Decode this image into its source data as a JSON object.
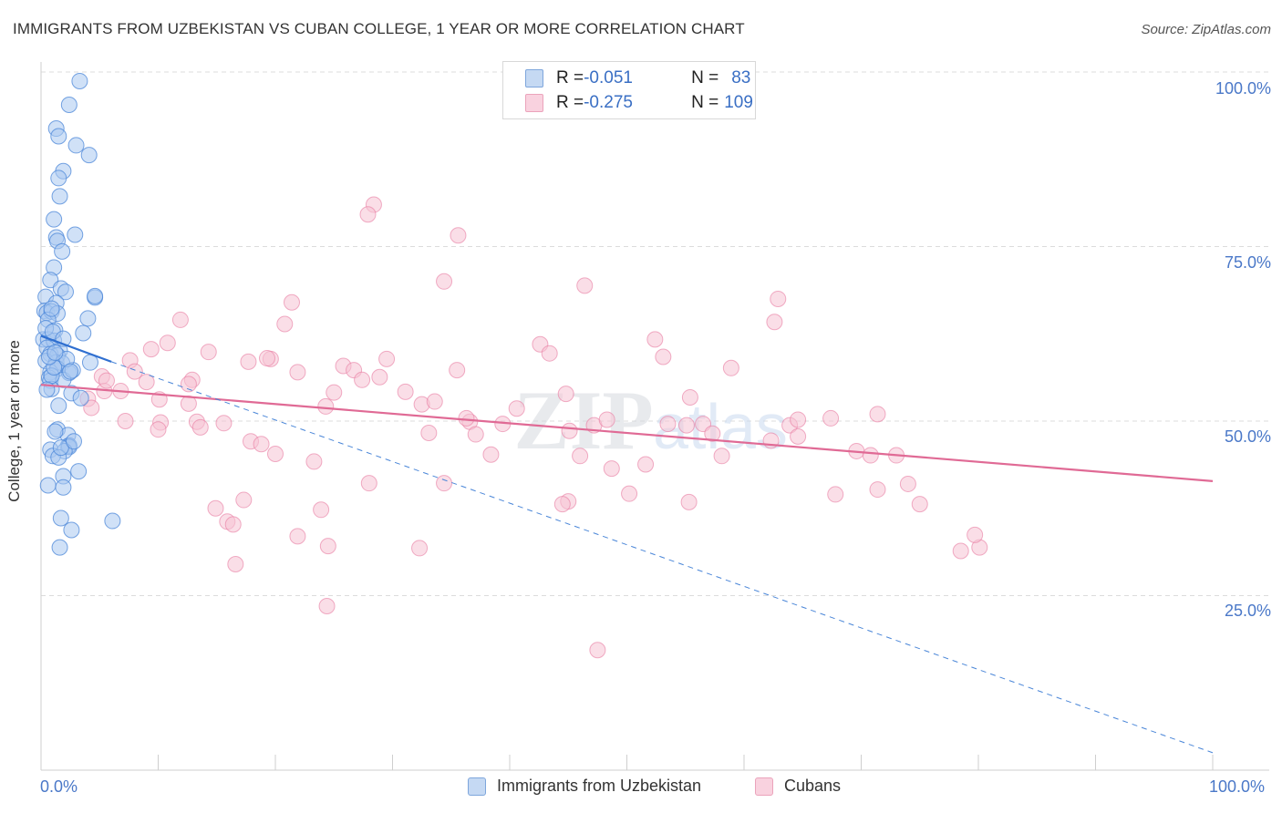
{
  "title": "IMMIGRANTS FROM UZBEKISTAN VS CUBAN COLLEGE, 1 YEAR OR MORE CORRELATION CHART",
  "source": "Source: ZipAtlas.com",
  "watermark": "ZIPatlas",
  "legend_top": {
    "rows": [
      {
        "r_label": "R = ",
        "r_value": "-0.051",
        "n_label": "N = ",
        "n_value": "83"
      },
      {
        "r_label": "R = ",
        "r_value": "-0.275",
        "n_label": "N = ",
        "n_value": "109"
      }
    ]
  },
  "colors": {
    "blue": "#4a86d8",
    "blue_fill": "#aac8f0",
    "pink": "#e87aa0",
    "pink_fill": "#f6c3d4",
    "axis_text": "#4a78c8"
  },
  "chart_data": {
    "type": "scatter",
    "title": "IMMIGRANTS FROM UZBEKISTAN VS CUBAN COLLEGE, 1 YEAR OR MORE CORRELATION CHART",
    "xlabel": "",
    "ylabel": "College, 1 year or more",
    "xlim": [
      0,
      100
    ],
    "ylim": [
      0,
      100
    ],
    "x_tick_labels": [
      "0.0%",
      "100.0%"
    ],
    "y_tick_labels": [
      "100.0%",
      "75.0%",
      "50.0%",
      "25.0%"
    ],
    "y_tick_values": [
      100,
      75,
      50,
      25
    ],
    "legend": [
      "Immigrants from Uzbekistan",
      "Cubans"
    ],
    "series": [
      {
        "name": "Immigrants from Uzbekistan",
        "r": -0.051,
        "n": 83,
        "trend_solid": {
          "x": [
            0,
            6
          ],
          "y": [
            62.2,
            58.5
          ]
        },
        "trend_dashed": {
          "x": [
            6,
            100
          ],
          "y": [
            58.5,
            2.5
          ]
        },
        "points": [
          [
            3.3,
            98.7
          ],
          [
            2.4,
            95.3
          ],
          [
            1.3,
            91.9
          ],
          [
            1.5,
            90.8
          ],
          [
            3.0,
            89.5
          ],
          [
            4.1,
            88.1
          ],
          [
            1.9,
            85.8
          ],
          [
            1.5,
            84.8
          ],
          [
            1.6,
            82.2
          ],
          [
            1.1,
            78.9
          ],
          [
            2.9,
            76.7
          ],
          [
            1.3,
            76.3
          ],
          [
            1.4,
            75.8
          ],
          [
            1.8,
            74.3
          ],
          [
            1.1,
            72.0
          ],
          [
            0.8,
            70.2
          ],
          [
            1.7,
            69.0
          ],
          [
            2.1,
            68.5
          ],
          [
            0.4,
            67.8
          ],
          [
            4.6,
            67.7
          ],
          [
            4.6,
            67.9
          ],
          [
            1.3,
            66.9
          ],
          [
            0.3,
            65.8
          ],
          [
            0.5,
            65.5
          ],
          [
            0.9,
            65.7
          ],
          [
            1.4,
            65.4
          ],
          [
            4.0,
            64.7
          ],
          [
            0.6,
            64.5
          ],
          [
            1.2,
            63.0
          ],
          [
            3.6,
            62.6
          ],
          [
            0.2,
            61.7
          ],
          [
            0.6,
            61.7
          ],
          [
            1.1,
            61.5
          ],
          [
            0.5,
            60.5
          ],
          [
            1.6,
            60.1
          ],
          [
            0.8,
            59.6
          ],
          [
            1.4,
            59.4
          ],
          [
            0.4,
            58.6
          ],
          [
            1.3,
            58.4
          ],
          [
            1.8,
            58.3
          ],
          [
            4.2,
            58.4
          ],
          [
            0.8,
            57.0
          ],
          [
            1.4,
            57.5
          ],
          [
            2.4,
            56.9
          ],
          [
            0.7,
            56.2
          ],
          [
            0.8,
            55.8
          ],
          [
            1.9,
            55.9
          ],
          [
            0.9,
            54.6
          ],
          [
            2.6,
            54.0
          ],
          [
            1.5,
            52.2
          ],
          [
            3.4,
            53.3
          ],
          [
            1.4,
            48.8
          ],
          [
            2.3,
            48.0
          ],
          [
            2.3,
            46.4
          ],
          [
            2.4,
            46.5
          ],
          [
            2.4,
            46.3
          ],
          [
            0.8,
            45.9
          ],
          [
            2.0,
            45.7
          ],
          [
            1.0,
            45.0
          ],
          [
            1.5,
            44.8
          ],
          [
            3.2,
            42.8
          ],
          [
            1.9,
            42.1
          ],
          [
            0.6,
            40.8
          ],
          [
            1.9,
            40.5
          ],
          [
            1.7,
            36.1
          ],
          [
            6.1,
            35.7
          ],
          [
            2.6,
            34.4
          ],
          [
            1.6,
            31.9
          ],
          [
            0.9,
            56.5
          ],
          [
            1.1,
            57.7
          ],
          [
            2.7,
            57.3
          ],
          [
            0.7,
            59.2
          ],
          [
            0.4,
            63.3
          ],
          [
            1.0,
            62.8
          ],
          [
            1.9,
            61.8
          ],
          [
            2.2,
            58.9
          ],
          [
            0.5,
            54.5
          ],
          [
            1.7,
            46.2
          ],
          [
            1.2,
            48.5
          ],
          [
            2.8,
            47.1
          ],
          [
            1.2,
            59.8
          ],
          [
            0.9,
            66.1
          ],
          [
            2.5,
            57.1
          ]
        ]
      },
      {
        "name": "Cubans",
        "r": -0.275,
        "n": 109,
        "trend": {
          "x": [
            0,
            100
          ],
          "y": [
            55.2,
            41.4
          ]
        },
        "points": [
          [
            28.4,
            81.0
          ],
          [
            27.9,
            79.6
          ],
          [
            35.6,
            76.6
          ],
          [
            34.4,
            70.0
          ],
          [
            46.4,
            69.4
          ],
          [
            62.9,
            67.5
          ],
          [
            21.4,
            67.0
          ],
          [
            62.6,
            64.2
          ],
          [
            20.8,
            63.9
          ],
          [
            11.9,
            64.5
          ],
          [
            52.4,
            61.7
          ],
          [
            10.8,
            61.2
          ],
          [
            42.6,
            61.0
          ],
          [
            9.4,
            60.3
          ],
          [
            14.3,
            59.9
          ],
          [
            53.1,
            59.2
          ],
          [
            43.4,
            59.7
          ],
          [
            29.5,
            58.9
          ],
          [
            19.6,
            58.9
          ],
          [
            17.7,
            58.5
          ],
          [
            19.3,
            59.0
          ],
          [
            25.8,
            57.9
          ],
          [
            35.5,
            57.3
          ],
          [
            58.9,
            57.6
          ],
          [
            7.6,
            58.7
          ],
          [
            8.0,
            57.1
          ],
          [
            21.9,
            57.0
          ],
          [
            26.7,
            57.3
          ],
          [
            5.2,
            56.4
          ],
          [
            28.9,
            56.3
          ],
          [
            12.9,
            55.9
          ],
          [
            9.0,
            55.6
          ],
          [
            4.0,
            53.2
          ],
          [
            5.4,
            54.3
          ],
          [
            5.6,
            55.8
          ],
          [
            27.4,
            55.9
          ],
          [
            12.6,
            55.3
          ],
          [
            31.1,
            54.2
          ],
          [
            44.8,
            53.9
          ],
          [
            25.0,
            54.1
          ],
          [
            6.8,
            54.3
          ],
          [
            10.1,
            53.1
          ],
          [
            12.6,
            52.5
          ],
          [
            4.3,
            51.9
          ],
          [
            24.3,
            52.1
          ],
          [
            32.5,
            52.4
          ],
          [
            7.2,
            50.0
          ],
          [
            10.2,
            49.8
          ],
          [
            13.3,
            49.9
          ],
          [
            15.6,
            49.7
          ],
          [
            36.6,
            49.9
          ],
          [
            36.3,
            50.4
          ],
          [
            47.2,
            49.4
          ],
          [
            48.3,
            50.2
          ],
          [
            53.5,
            49.6
          ],
          [
            55.1,
            49.4
          ],
          [
            56.5,
            49.6
          ],
          [
            57.3,
            48.2
          ],
          [
            63.9,
            49.4
          ],
          [
            64.6,
            50.2
          ],
          [
            64.6,
            47.8
          ],
          [
            67.4,
            50.4
          ],
          [
            71.4,
            51.0
          ],
          [
            13.6,
            49.1
          ],
          [
            10.0,
            48.8
          ],
          [
            39.4,
            49.6
          ],
          [
            45.1,
            48.6
          ],
          [
            37.1,
            48.1
          ],
          [
            33.1,
            48.3
          ],
          [
            62.3,
            47.2
          ],
          [
            17.9,
            47.1
          ],
          [
            18.8,
            46.7
          ],
          [
            20.0,
            45.3
          ],
          [
            46.0,
            45.0
          ],
          [
            58.1,
            45.0
          ],
          [
            69.6,
            45.7
          ],
          [
            70.8,
            45.1
          ],
          [
            73.0,
            45.1
          ],
          [
            23.3,
            44.2
          ],
          [
            48.7,
            43.2
          ],
          [
            51.6,
            43.8
          ],
          [
            28.0,
            41.1
          ],
          [
            34.4,
            41.1
          ],
          [
            74.0,
            41.0
          ],
          [
            71.4,
            40.2
          ],
          [
            17.3,
            38.7
          ],
          [
            50.2,
            39.6
          ],
          [
            45.0,
            38.5
          ],
          [
            44.5,
            38.1
          ],
          [
            55.3,
            38.4
          ],
          [
            67.8,
            39.5
          ],
          [
            75.0,
            38.1
          ],
          [
            14.9,
            37.5
          ],
          [
            23.9,
            37.3
          ],
          [
            15.9,
            35.6
          ],
          [
            16.4,
            35.2
          ],
          [
            21.9,
            33.5
          ],
          [
            24.5,
            32.1
          ],
          [
            32.3,
            31.8
          ],
          [
            78.5,
            31.4
          ],
          [
            80.1,
            31.9
          ],
          [
            79.7,
            33.7
          ],
          [
            16.6,
            29.5
          ],
          [
            24.4,
            23.5
          ],
          [
            47.5,
            17.2
          ],
          [
            40.6,
            51.8
          ],
          [
            38.4,
            45.2
          ],
          [
            55.4,
            53.4
          ],
          [
            33.6,
            52.8
          ]
        ]
      }
    ]
  }
}
